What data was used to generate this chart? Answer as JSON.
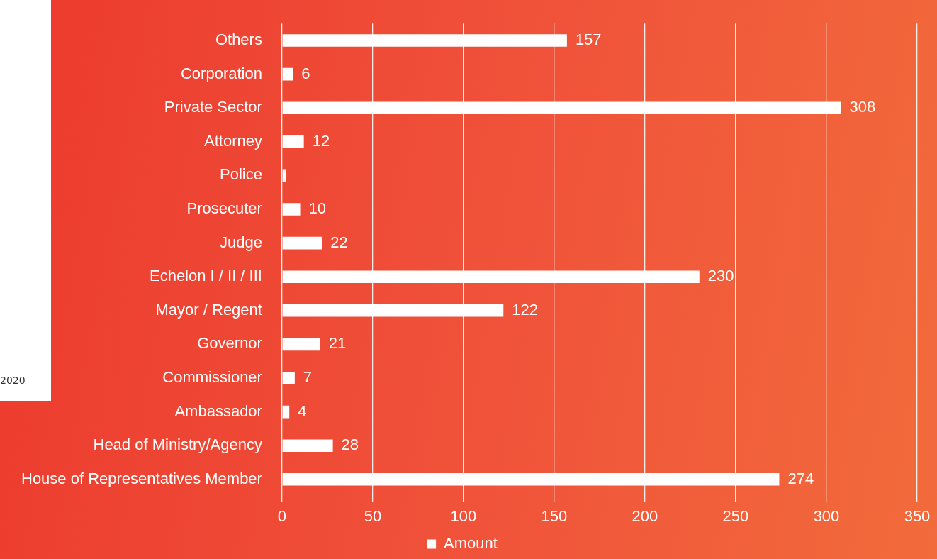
{
  "chart_data": {
    "type": "bar",
    "orientation": "horizontal",
    "categories": [
      "Others",
      "Corporation",
      "Private Sector",
      "Attorney",
      "Police",
      "Prosecuter",
      "Judge",
      "Echelon I / II / III",
      "Mayor / Regent",
      "Governor",
      "Commissioner",
      "Ambassador",
      "Head of Ministry/Agency",
      "House of Representatives Member"
    ],
    "series": [
      {
        "name": "Amount",
        "color": "#ffffff",
        "values": [
          157,
          6,
          308,
          12,
          2,
          10,
          22,
          230,
          122,
          21,
          7,
          4,
          28,
          274
        ],
        "value_labels": [
          "157",
          "6",
          "308",
          "12",
          null,
          "10",
          "22",
          "230",
          "122",
          "21",
          "7",
          "4",
          "28",
          "274"
        ]
      }
    ],
    "xlim": [
      0,
      350
    ],
    "xticks": [
      0,
      50,
      100,
      150,
      200,
      250,
      300,
      350
    ],
    "grid": "x",
    "legend": "bottom",
    "annotations": [
      "2020"
    ]
  }
}
